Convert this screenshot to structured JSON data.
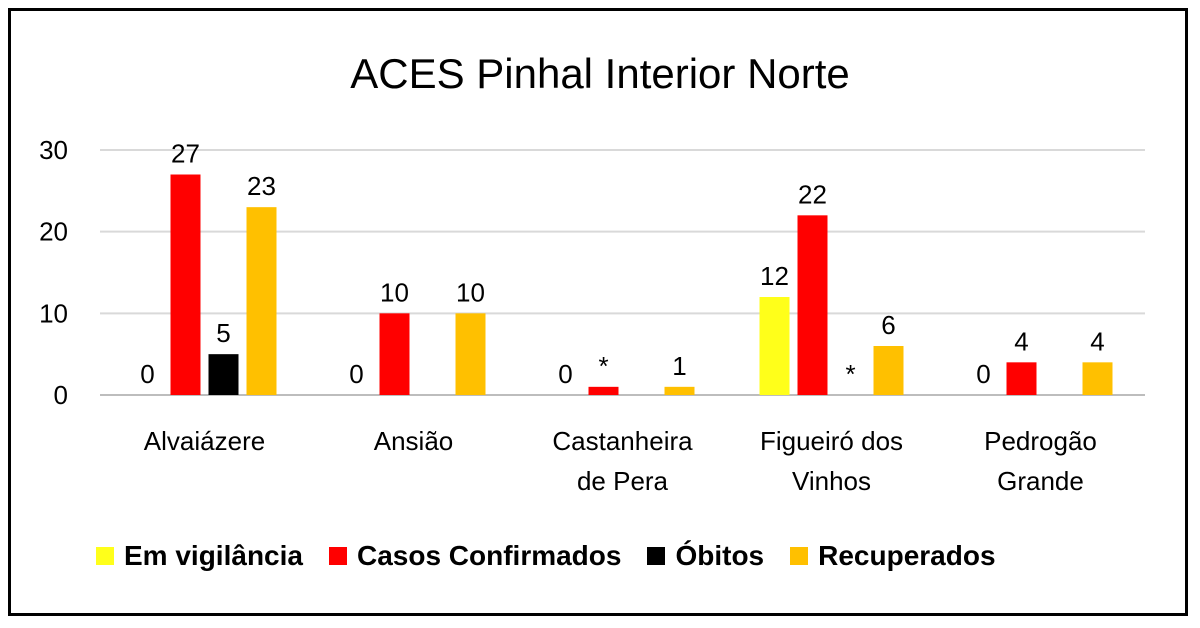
{
  "chart_data": {
    "type": "bar",
    "title": "ACES Pinhal Interior Norte",
    "categories": [
      [
        "Alvaiázere"
      ],
      [
        "Ansião"
      ],
      [
        "Castanheira",
        "de Pera"
      ],
      [
        "Figueiró dos",
        "Vinhos"
      ],
      [
        "Pedrogão",
        "Grande"
      ]
    ],
    "series": [
      {
        "name": "Em vigilância",
        "color": "#FFFF1A",
        "values": [
          0,
          0,
          0,
          12,
          0
        ],
        "labels": [
          "0",
          "0",
          "0",
          "12",
          "0"
        ]
      },
      {
        "name": "Casos Confirmados",
        "color": "#FF0000",
        "values": [
          27,
          10,
          1,
          22,
          4
        ],
        "labels": [
          "27",
          "10",
          "*",
          "22",
          "4"
        ]
      },
      {
        "name": "Óbitos",
        "color": "#000000",
        "values": [
          5,
          0,
          0,
          0,
          0
        ],
        "labels": [
          "5",
          "",
          "",
          "*",
          ""
        ]
      },
      {
        "name": "Recuperados",
        "color": "#FFC000",
        "values": [
          23,
          10,
          1,
          6,
          4
        ],
        "labels": [
          "23",
          "10",
          "1",
          "6",
          "4"
        ]
      }
    ],
    "ylim": [
      0,
      30
    ],
    "yticks": [
      0,
      10,
      20,
      30
    ],
    "grid": true,
    "legend_position": "bottom"
  }
}
